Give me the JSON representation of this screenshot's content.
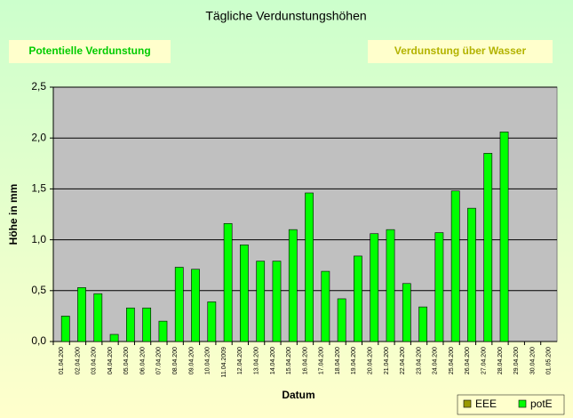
{
  "chart_data": {
    "type": "bar",
    "title": "Tägliche Verdunstungshöhen",
    "annotations": [
      "Potentielle Verdunstung",
      "Verdunstung über Wasser"
    ],
    "xlabel": "Datum",
    "ylabel": "Höhe in mm",
    "categories": [
      "01.04.200",
      "02.04.200",
      "03.04.200",
      "04.04.200",
      "05.04.200",
      "06.04.200",
      "07.04.200",
      "08.04.200",
      "09.04.200",
      "10.04.200",
      "11.04.2009",
      "12.04.200",
      "13.04.200",
      "14.04.200",
      "15.04.200",
      "16.04.200",
      "17.04.200",
      "18.04.200",
      "19.04.200",
      "20.04.200",
      "21.04.200",
      "22.04.200",
      "23.04.200",
      "24.04.200",
      "25.04.200",
      "26.04.200",
      "27.04.200",
      "28.04.200",
      "29.04.200",
      "30.04.200",
      "01.05.200"
    ],
    "series": [
      {
        "name": "EEE",
        "color": "#999900",
        "values": [
          null,
          null,
          null,
          null,
          null,
          null,
          null,
          null,
          null,
          null,
          null,
          null,
          null,
          null,
          null,
          null,
          null,
          null,
          null,
          null,
          null,
          null,
          null,
          null,
          null,
          null,
          null,
          null,
          null,
          null,
          null
        ]
      },
      {
        "name": "potE",
        "color": "#00ff00",
        "values": [
          0.25,
          0.53,
          0.47,
          0.07,
          0.33,
          0.33,
          0.2,
          0.73,
          0.71,
          0.39,
          1.16,
          0.95,
          0.79,
          0.79,
          1.1,
          1.46,
          0.69,
          0.42,
          0.84,
          1.06,
          1.1,
          0.57,
          0.34,
          1.07,
          1.48,
          1.31,
          1.85,
          2.06,
          null,
          null,
          null
        ]
      }
    ],
    "ylim": [
      0,
      2.5
    ],
    "yticks": [
      {
        "value": 0,
        "label": "0,0"
      },
      {
        "value": 0.5,
        "label": "0,5"
      },
      {
        "value": 1,
        "label": "1,0"
      },
      {
        "value": 1.5,
        "label": "1,5"
      },
      {
        "value": 2,
        "label": "2,0"
      },
      {
        "value": 2.5,
        "label": "2,5"
      }
    ],
    "grid": true,
    "legend": "bottom-right"
  }
}
